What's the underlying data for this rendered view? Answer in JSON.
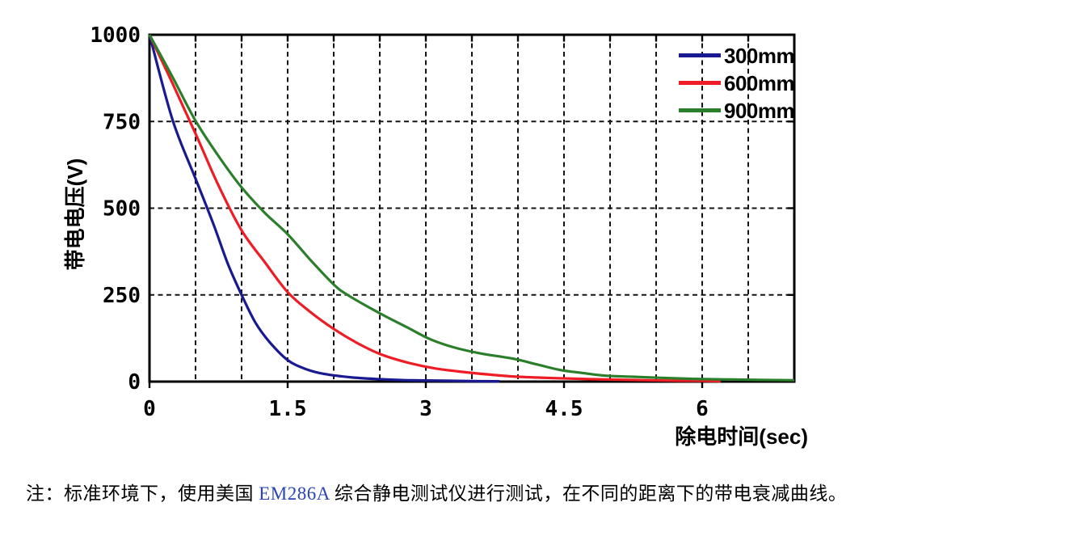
{
  "chart_data": {
    "type": "line",
    "title": "",
    "xlabel": "除电时间(sec)",
    "ylabel": "带电电压(V)",
    "xlim": [
      0,
      7.0
    ],
    "ylim": [
      0,
      1000
    ],
    "x_major_ticks": [
      0,
      1.5,
      3,
      4.5,
      6
    ],
    "x_tick_labels": [
      "0",
      "1.5",
      "3",
      "4.5",
      "6"
    ],
    "x_minor_grid_step": 0.5,
    "y_major_ticks": [
      0,
      250,
      500,
      750,
      1000
    ],
    "y_tick_labels": [
      "0",
      "250",
      "500",
      "750",
      "1000"
    ],
    "grid": "dashed-black",
    "legend_position": "top-right-inside",
    "series": [
      {
        "name": "300mm",
        "color": "#1a1a90",
        "points": [
          [
            0,
            1000
          ],
          [
            0.25,
            755
          ],
          [
            0.5,
            585
          ],
          [
            0.7,
            450
          ],
          [
            0.85,
            340
          ],
          [
            1.0,
            250
          ],
          [
            1.15,
            170
          ],
          [
            1.3,
            115
          ],
          [
            1.5,
            62
          ],
          [
            1.7,
            36
          ],
          [
            1.9,
            22
          ],
          [
            2.2,
            12
          ],
          [
            2.5,
            7
          ],
          [
            2.8,
            4
          ],
          [
            3.2,
            2.5
          ],
          [
            3.5,
            1.5
          ],
          [
            3.8,
            1
          ]
        ]
      },
      {
        "name": "600mm",
        "color": "#ee1c25",
        "points": [
          [
            0,
            1000
          ],
          [
            0.25,
            860
          ],
          [
            0.5,
            715
          ],
          [
            0.75,
            565
          ],
          [
            1.0,
            436
          ],
          [
            1.25,
            345
          ],
          [
            1.5,
            258
          ],
          [
            1.75,
            200
          ],
          [
            2.0,
            152
          ],
          [
            2.25,
            112
          ],
          [
            2.5,
            80
          ],
          [
            2.8,
            55
          ],
          [
            3.1,
            38
          ],
          [
            3.4,
            28
          ],
          [
            3.7,
            20
          ],
          [
            4.0,
            14
          ],
          [
            4.4,
            10
          ],
          [
            4.8,
            7
          ],
          [
            5.2,
            5
          ],
          [
            5.6,
            3
          ],
          [
            6.0,
            2
          ],
          [
            6.2,
            1
          ]
        ]
      },
      {
        "name": "900mm",
        "color": "#2b7f2b",
        "points": [
          [
            0,
            1000
          ],
          [
            0.25,
            878
          ],
          [
            0.5,
            752
          ],
          [
            0.75,
            650
          ],
          [
            1.0,
            560
          ],
          [
            1.25,
            487
          ],
          [
            1.5,
            425
          ],
          [
            1.75,
            350
          ],
          [
            2.0,
            280
          ],
          [
            2.15,
            250
          ],
          [
            2.5,
            197
          ],
          [
            2.8,
            156
          ],
          [
            3.05,
            122
          ],
          [
            3.3,
            99
          ],
          [
            3.6,
            81
          ],
          [
            3.95,
            66
          ],
          [
            4.2,
            50
          ],
          [
            4.45,
            34
          ],
          [
            4.7,
            25
          ],
          [
            4.95,
            17
          ],
          [
            5.25,
            14
          ],
          [
            5.55,
            11
          ],
          [
            5.9,
            8
          ],
          [
            6.3,
            6
          ],
          [
            6.6,
            5
          ],
          [
            7.0,
            4
          ]
        ]
      }
    ]
  },
  "note": {
    "prefix": "注：标准环境下，使用美国 ",
    "model": "EM286A",
    "suffix": " 综合静电测试仪进行测试，在不同的距离下的带电衰减曲线。",
    "model_color": "#2b46b4"
  },
  "colors": {
    "background": "#ffffff",
    "axis": "#000000",
    "grid": "#141414",
    "text": "#000000"
  }
}
